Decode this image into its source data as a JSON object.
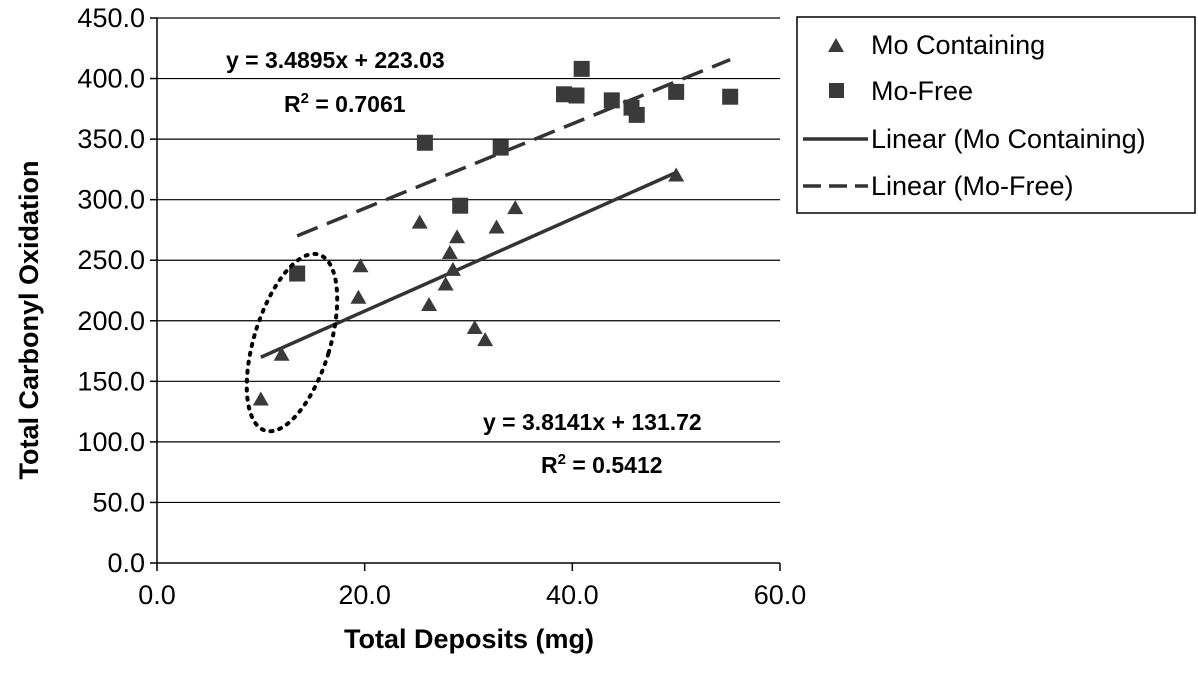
{
  "chart_data": {
    "type": "scatter",
    "xlabel": "Total Deposits (mg)",
    "ylabel": "Total Carbonyl Oxidation",
    "xlim": [
      0,
      60
    ],
    "ylim": [
      0,
      450
    ],
    "x_ticks": [
      "0.0",
      "20.0",
      "40.0",
      "60.0"
    ],
    "y_ticks": [
      "0.0",
      "50.0",
      "100.0",
      "150.0",
      "200.0",
      "250.0",
      "300.0",
      "350.0",
      "400.0",
      "450.0"
    ],
    "grid": "horizontal",
    "legend_position": "right",
    "series": [
      {
        "name": "Mo Containing",
        "marker": "triangle",
        "color": "#3a3a3a",
        "points": [
          [
            10.0,
            135
          ],
          [
            12.0,
            172
          ],
          [
            19.4,
            219
          ],
          [
            19.6,
            245
          ],
          [
            25.3,
            281
          ],
          [
            26.2,
            213
          ],
          [
            27.8,
            230
          ],
          [
            28.2,
            256
          ],
          [
            28.5,
            242
          ],
          [
            28.9,
            269
          ],
          [
            30.6,
            194
          ],
          [
            31.6,
            184
          ],
          [
            32.7,
            277
          ],
          [
            34.5,
            293
          ],
          [
            50.0,
            320
          ]
        ]
      },
      {
        "name": "Mo-Free",
        "marker": "square",
        "color": "#3a3a3a",
        "points": [
          [
            13.5,
            239
          ],
          [
            25.8,
            347
          ],
          [
            29.2,
            295
          ],
          [
            33.1,
            343
          ],
          [
            39.2,
            387
          ],
          [
            40.4,
            386
          ],
          [
            40.9,
            408
          ],
          [
            43.8,
            382
          ],
          [
            45.7,
            376
          ],
          [
            46.2,
            370
          ],
          [
            50.0,
            389
          ],
          [
            55.2,
            385
          ]
        ]
      }
    ],
    "trendlines": [
      {
        "name": "Linear (Mo Containing)",
        "style": "solid",
        "slope": 3.8141,
        "intercept": 131.72,
        "x_range": [
          10,
          50
        ],
        "equation": "y = 3.8141x + 131.72",
        "r2_label": "R",
        "r2_exp": "2",
        "r2_value": " = 0.5412"
      },
      {
        "name": "Linear (Mo-Free)",
        "style": "dashed",
        "slope": 3.4895,
        "intercept": 223.03,
        "x_range": [
          13.5,
          55.2
        ],
        "equation": "y = 3.4895x + 223.03",
        "r2_label": "R",
        "r2_exp": "2",
        "r2_value": " = 0.7061"
      }
    ],
    "annotations": [
      {
        "type": "dotted-ellipse",
        "center": [
          13.0,
          182
        ],
        "note": ""
      }
    ]
  }
}
